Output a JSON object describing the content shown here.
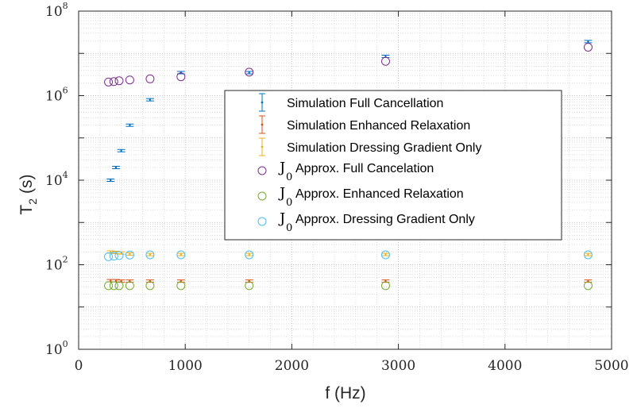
{
  "chart_data": {
    "type": "scatter",
    "xlabel": "f (Hz)",
    "ylabel_main": "T",
    "ylabel_sub": "2",
    "ylabel_unit": "(s)",
    "xlim": [
      0,
      5000
    ],
    "ylim": [
      1,
      100000000
    ],
    "yscale": "log",
    "grid": true,
    "minor_grid": true,
    "x_ticks": [
      0,
      1000,
      2000,
      3000,
      4000,
      5000
    ],
    "y_ticks": [
      {
        "base": "10",
        "exp": "0",
        "value": 1
      },
      {
        "base": "10",
        "exp": "2",
        "value": 100
      },
      {
        "base": "10",
        "exp": "4",
        "value": 10000
      },
      {
        "base": "10",
        "exp": "6",
        "value": 1000000
      },
      {
        "base": "10",
        "exp": "8",
        "value": 100000000
      }
    ],
    "legend_placement": "center-right",
    "x": [
      300,
      350,
      400,
      480,
      670,
      960,
      1600,
      2880,
      4780
    ],
    "series": [
      {
        "name": "Simulation Full Cancellation",
        "marker": "errorbar",
        "color": "#0072BD",
        "values": [
          10000,
          20000,
          50000,
          200000,
          800000,
          3500000,
          3500000,
          8500000,
          19000000
        ]
      },
      {
        "name": "Simulation Enhanced Relaxation",
        "marker": "errorbar",
        "color": "#D95319",
        "values": [
          42,
          42,
          41,
          41,
          41,
          41,
          41,
          41,
          41
        ]
      },
      {
        "name": "Simulation Dressing Gradient Only",
        "marker": "errorbar",
        "color": "#EDB120",
        "values": [
          200,
          195,
          190,
          180,
          175,
          175,
          175,
          175,
          175
        ]
      },
      {
        "prefix": "J",
        "prefix_sub": "0",
        "name": "Approx.  Full Cancelation",
        "marker": "circle",
        "color": "#7E2F8E",
        "x": [
          280,
          330,
          380,
          480,
          670,
          960,
          1600,
          2880,
          4780
        ],
        "values": [
          2100000,
          2150000,
          2250000,
          2350000,
          2500000,
          2800000,
          3600000,
          6500000,
          14000000
        ]
      },
      {
        "prefix": "J",
        "prefix_sub": "0",
        "name": "Approx. Enhanced Relaxation",
        "marker": "circle",
        "color": "#77AC30",
        "x": [
          280,
          330,
          380,
          480,
          670,
          960,
          1600,
          2880,
          4780
        ],
        "values": [
          32,
          32,
          32,
          32,
          32,
          32,
          32,
          32,
          32
        ]
      },
      {
        "prefix": "J",
        "prefix_sub": "0",
        "name": "Approx. Dressing Gradient Only",
        "marker": "circle",
        "color": "#4DBEEE",
        "x": [
          280,
          330,
          380,
          480,
          670,
          960,
          1600,
          2880,
          4780
        ],
        "values": [
          155,
          160,
          165,
          170,
          172,
          172,
          172,
          172,
          172
        ]
      }
    ]
  }
}
